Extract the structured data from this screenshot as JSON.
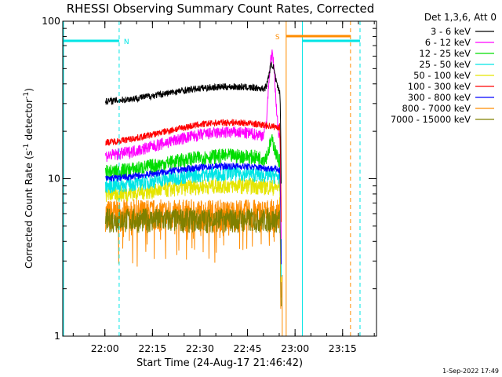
{
  "chart_data": {
    "type": "line",
    "title": "RHESSI Observing Summary Count Rates, Corrected",
    "xlabel": "Start Time (24-Aug-17 21:46:42)",
    "ylabel_parts": [
      "Corrected Count Rate (s",
      "-1",
      " detector",
      "-1",
      ")"
    ],
    "yscale": "log",
    "ylim": [
      1,
      100
    ],
    "y_ticks": [
      {
        "value": 1,
        "label": "1"
      },
      {
        "value": 10,
        "label": "10"
      },
      {
        "value": 100,
        "label": "100"
      }
    ],
    "x_ticks": [
      {
        "minutes": 13.3,
        "label": "22:00"
      },
      {
        "minutes": 28.3,
        "label": "22:15"
      },
      {
        "minutes": 43.3,
        "label": "22:30"
      },
      {
        "minutes": 58.3,
        "label": "22:45"
      },
      {
        "minutes": 73.3,
        "label": "23:00"
      },
      {
        "minutes": 88.3,
        "label": "23:15"
      }
    ],
    "xlim_minutes": [
      0,
      99
    ],
    "legend_title": "Det 1,3,6, Att 0",
    "legend_position": "outside-right",
    "series": [
      {
        "name": "3 - 6 keV",
        "color": "#000000",
        "level": 31,
        "noise": 0.05,
        "rise": 0.0035,
        "flare": 1.45
      },
      {
        "name": "6 - 12 keV",
        "color": "#ff00ff",
        "level": 14,
        "noise": 0.09,
        "rise": 0.006,
        "flare": 3.3
      },
      {
        "name": "12 - 25 keV",
        "color": "#00dd00",
        "level": 11,
        "noise": 0.11,
        "rise": 0.004,
        "flare": 1.3
      },
      {
        "name": "25 - 50 keV",
        "color": "#00e5e5",
        "level": 9,
        "noise": 0.11,
        "rise": 0.003,
        "flare": 1.0
      },
      {
        "name": "50 - 100 keV",
        "color": "#e5e500",
        "level": 8,
        "noise": 0.12,
        "rise": 0.002,
        "flare": 1.0
      },
      {
        "name": "100 - 300 keV",
        "color": "#ff0000",
        "level": 17,
        "noise": 0.05,
        "rise": 0.005,
        "flare": 1.0
      },
      {
        "name": "300 - 800 keV",
        "color": "#0000ff",
        "level": 10,
        "noise": 0.05,
        "rise": 0.003,
        "flare": 1.0
      },
      {
        "name": "800 - 7000 keV",
        "color": "#ff8c00",
        "level": 6,
        "noise": 0.13,
        "rise": 0.0,
        "flare": 1.0
      },
      {
        "name": "7000 - 15000 keV",
        "color": "#808000",
        "level": 5.5,
        "noise": 0.1,
        "rise": 0.0,
        "flare": 1.0
      }
    ],
    "data_interval_minutes": [
      13.5,
      69.0
    ],
    "flare_peak_minutes": 66.0,
    "night_periods": [
      {
        "label": "N",
        "start_minutes": 0.0,
        "end_minutes": 17.8,
        "color": "#00e5e5"
      },
      {
        "label": "",
        "start_minutes": 75.6,
        "end_minutes": 93.8,
        "color": "#00e5e5"
      }
    ],
    "saa_periods": [
      {
        "label": "S",
        "start_minutes": 70.5,
        "end_minutes": 90.8,
        "color": "#ff8c00"
      }
    ],
    "indicator_level": 75
  },
  "footer": {
    "timestamp": "1-Sep-2022 17:49"
  }
}
